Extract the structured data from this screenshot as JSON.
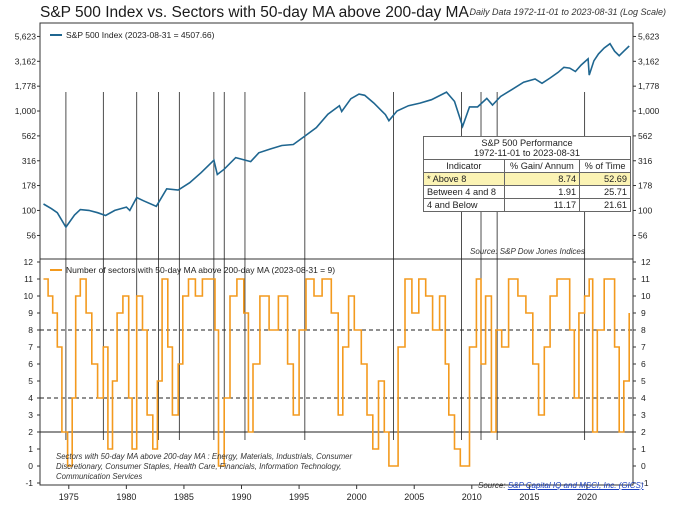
{
  "title": "S&P 500 Index vs. Sectors with 50-day MA above 200-day MA",
  "subtitle": "Daily Data 1972-11-01 to 2023-08-31 (Log Scale)",
  "colors": {
    "index_line": "#1f6690",
    "sector_line": "#f39a1e",
    "frame": "#333333",
    "highlight_row": "#fbf3b4"
  },
  "perf_table": {
    "title": "S&P 500 Performance",
    "period": "1972-11-01 to 2023-08-31",
    "headers": [
      "Indicator",
      "% Gain/ Annum",
      "% of Time"
    ],
    "rows": [
      [
        "* Above 8",
        "8.74",
        "52.69"
      ],
      [
        "Between 4 and 8",
        "1.91",
        "25.71"
      ],
      [
        "4 and Below",
        "11.17",
        "21.61"
      ]
    ]
  },
  "source_top": "Source:  S&P Dow Jones Indices",
  "source_bottom_prefix": "Source:",
  "source_bottom_link": "S&P Capital IQ and MSCI, Inc. (GICS)",
  "sector_note": "Sectors with 50-day MA above 200-day MA :  Energy, Materials, Industrials, Consumer Discretionary, Consumer Staples, Health Care, Financials, Information Technology, Communication Services",
  "chart_data": [
    {
      "type": "line",
      "title": "S&P 500 Index vs. Sectors with 50-day MA above 200-day MA",
      "y_scale": "log",
      "ylim": [
        40,
        7000
      ],
      "yticks": [
        "56",
        "100",
        "178",
        "316",
        "562",
        "1,000",
        "1,778",
        "3,162",
        "5,623"
      ],
      "grid": false,
      "legend": "top-left",
      "series": [
        {
          "name": "S&P 500 Index (2023-08-31 = 4507.66)",
          "x": [
            1972.8,
            1973.5,
            1974.0,
            1974.75,
            1975.5,
            1976.0,
            1976.75,
            1977.5,
            1978.2,
            1979.0,
            1980.0,
            1980.3,
            1980.9,
            1981.5,
            1982.6,
            1983.5,
            1984.5,
            1985.5,
            1986.5,
            1987.6,
            1987.9,
            1988.5,
            1989.5,
            1990.8,
            1991.5,
            1992.5,
            1993.5,
            1994.5,
            1995.5,
            1996.5,
            1997.5,
            1998.5,
            1998.7,
            1999.5,
            2000.2,
            2000.7,
            2001.5,
            2002.5,
            2002.8,
            2003.5,
            2004.5,
            2005.5,
            2006.5,
            2007.8,
            2008.5,
            2009.2,
            2009.8,
            2010.5,
            2011.3,
            2011.8,
            2012.5,
            2013.5,
            2014.5,
            2015.5,
            2016.1,
            2016.8,
            2017.5,
            2018.0,
            2018.5,
            2019.0,
            2019.5,
            2020.1,
            2020.2,
            2020.6,
            2021.0,
            2021.5,
            2022.0,
            2022.4,
            2022.8,
            2023.2,
            2023.67
          ],
          "values": [
            116,
            104,
            95,
            68,
            90,
            102,
            100,
            95,
            89,
            100,
            108,
            100,
            135,
            125,
            110,
            165,
            160,
            190,
            240,
            320,
            230,
            260,
            340,
            310,
            380,
            415,
            450,
            460,
            560,
            680,
            930,
            1130,
            990,
            1330,
            1480,
            1440,
            1200,
            920,
            800,
            1000,
            1130,
            1200,
            1300,
            1550,
            1250,
            700,
            1100,
            1100,
            1340,
            1150,
            1400,
            1650,
            1950,
            2100,
            1900,
            2150,
            2450,
            2750,
            2700,
            2500,
            2900,
            3350,
            2300,
            3200,
            3750,
            4300,
            4750,
            4000,
            3600,
            4000,
            4507.66
          ]
        }
      ],
      "markers_x": [
        1974.75,
        1978.0,
        1980.9,
        1982.8,
        1984.6,
        1987.6,
        1988.5,
        1990.3,
        1995.5,
        2003.2,
        2009.1,
        2010.8,
        2012.2,
        2019.8
      ]
    },
    {
      "type": "line",
      "title": "",
      "ylim": [
        -1,
        12
      ],
      "yticks": [
        "-1",
        "0",
        "1",
        "2",
        "3",
        "4",
        "5",
        "6",
        "7",
        "8",
        "9",
        "10",
        "11",
        "12"
      ],
      "x_tick_labels": [
        "1975",
        "1980",
        "1985",
        "1990",
        "1995",
        "2000",
        "2005",
        "2010",
        "2015",
        "2020"
      ],
      "reference_lines": [
        {
          "y": 8,
          "style": "dashed"
        },
        {
          "y": 4,
          "style": "dashed"
        },
        {
          "y": 2,
          "style": "solid"
        }
      ],
      "grid": false,
      "legend": "top-left",
      "series": [
        {
          "name": "Number of sectors with 50-day MA above 200-day MA (2023-08-31 = 9)",
          "x": [
            1972.8,
            1973.2,
            1973.6,
            1974.0,
            1974.4,
            1974.9,
            1975.3,
            1975.6,
            1976.0,
            1976.5,
            1977.0,
            1977.5,
            1978.0,
            1978.4,
            1978.8,
            1979.2,
            1979.7,
            1980.2,
            1980.5,
            1980.9,
            1981.4,
            1981.8,
            1982.3,
            1982.7,
            1983.1,
            1983.6,
            1984.0,
            1984.5,
            1984.9,
            1985.4,
            1986.0,
            1986.6,
            1987.2,
            1987.7,
            1988.0,
            1988.5,
            1989.0,
            1989.6,
            1990.2,
            1990.6,
            1991.0,
            1991.6,
            1992.4,
            1993.2,
            1994.0,
            1994.5,
            1995.0,
            1995.6,
            1996.3,
            1997.0,
            1997.8,
            1998.4,
            1998.8,
            1999.3,
            1999.8,
            2000.4,
            2000.9,
            2001.4,
            2001.9,
            2002.4,
            2002.8,
            2003.2,
            2003.6,
            2004.2,
            2004.8,
            2005.4,
            2006.0,
            2006.6,
            2007.2,
            2007.7,
            2008.0,
            2008.5,
            2009.0,
            2009.4,
            2009.8,
            2010.4,
            2010.8,
            2011.2,
            2011.7,
            2012.1,
            2012.6,
            2013.2,
            2014.0,
            2014.7,
            2015.3,
            2015.8,
            2016.3,
            2016.8,
            2017.4,
            2018.0,
            2018.5,
            2018.9,
            2019.3,
            2019.8,
            2020.2,
            2020.5,
            2020.9,
            2021.5,
            2022.0,
            2022.4,
            2022.8,
            2023.2,
            2023.67
          ],
          "values": [
            11,
            10,
            9,
            7,
            2,
            0,
            4,
            10,
            11,
            9,
            6,
            4,
            7,
            1,
            5,
            9,
            10,
            4,
            1,
            10,
            8,
            3,
            1,
            5,
            11,
            7,
            3,
            6,
            10,
            11,
            10,
            11,
            11,
            8,
            0,
            4,
            10,
            11,
            9,
            2,
            6,
            10,
            8,
            10,
            6,
            3,
            8,
            11,
            10,
            11,
            9,
            3,
            7,
            10,
            8,
            6,
            3,
            1,
            5,
            2,
            0,
            0,
            7,
            11,
            9,
            11,
            10,
            8,
            10,
            6,
            3,
            1,
            0,
            0,
            7,
            11,
            6,
            10,
            2,
            8,
            7,
            11,
            10,
            9,
            6,
            3,
            7,
            10,
            11,
            11,
            8,
            4,
            9,
            10,
            11,
            2,
            8,
            11,
            11,
            7,
            2,
            5,
            9
          ]
        }
      ]
    }
  ]
}
